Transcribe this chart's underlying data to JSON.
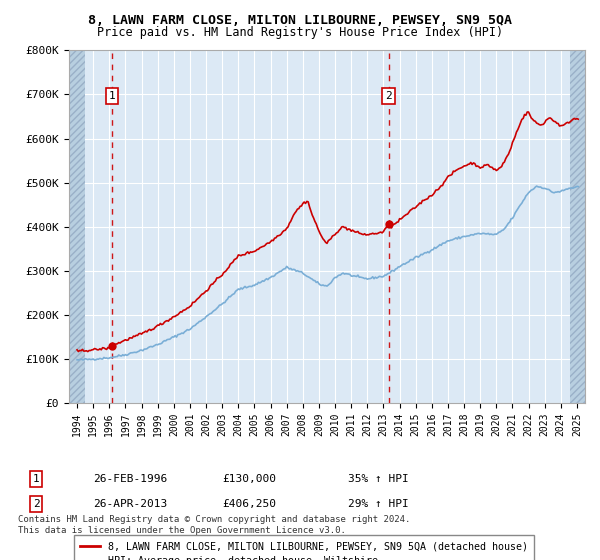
{
  "title": "8, LAWN FARM CLOSE, MILTON LILBOURNE, PEWSEY, SN9 5QA",
  "subtitle": "Price paid vs. HM Land Registry's House Price Index (HPI)",
  "legend_label_red": "8, LAWN FARM CLOSE, MILTON LILBOURNE, PEWSEY, SN9 5QA (detached house)",
  "legend_label_blue": "HPI: Average price, detached house, Wiltshire",
  "footnote": "Contains HM Land Registry data © Crown copyright and database right 2024.\nThis data is licensed under the Open Government Licence v3.0.",
  "sale1_date": "26-FEB-1996",
  "sale1_price": "£130,000",
  "sale1_hpi": "35% ↑ HPI",
  "sale1_year": 1996.15,
  "sale1_value": 130000,
  "sale2_date": "26-APR-2013",
  "sale2_price": "£406,250",
  "sale2_hpi": "29% ↑ HPI",
  "sale2_year": 2013.32,
  "sale2_value": 406250,
  "ylim": [
    0,
    800000
  ],
  "xlim_left": 1993.5,
  "xlim_right": 2025.5,
  "hatch_left_end": 1994.5,
  "hatch_right_start": 2024.6,
  "bg_color": "#dce9f5",
  "hatch_color": "#b8cfe0",
  "red_color": "#cc0000",
  "blue_color": "#7aaed6",
  "grid_color": "#ffffff",
  "yticks": [
    0,
    100000,
    200000,
    300000,
    400000,
    500000,
    600000,
    700000,
    800000
  ],
  "ytick_labels": [
    "£0",
    "£100K",
    "£200K",
    "£300K",
    "£400K",
    "£500K",
    "£600K",
    "£700K",
    "£800K"
  ],
  "xticks": [
    1994,
    1995,
    1996,
    1997,
    1998,
    1999,
    2000,
    2001,
    2002,
    2003,
    2004,
    2005,
    2006,
    2007,
    2008,
    2009,
    2010,
    2011,
    2012,
    2013,
    2014,
    2015,
    2016,
    2017,
    2018,
    2019,
    2020,
    2021,
    2022,
    2023,
    2024,
    2025
  ]
}
